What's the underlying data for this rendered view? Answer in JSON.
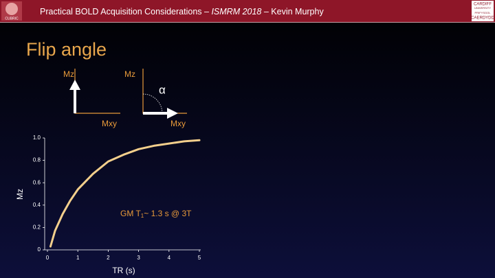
{
  "header": {
    "title_parts": [
      "Practical BOLD Acquisition Considerations – ",
      "ISMRM 2018",
      " – Kevin Murphy"
    ],
    "left_logo": "CUBRIC",
    "right_logo": [
      "CARDIFF",
      "UNIVERSITY",
      "PRIFYSGOL",
      "CAERDYDD"
    ]
  },
  "slide_title": "Flip angle",
  "diagram": {
    "left": {
      "vertical_label": "Mz",
      "horizontal_label": "Mxy"
    },
    "right": {
      "vertical_label": "Mz",
      "horizontal_label": "Mxy",
      "angle_label": "α"
    }
  },
  "chart_data": {
    "type": "line",
    "xlabel": "TR (s)",
    "ylabel": "Mz",
    "annotation": [
      "GM T",
      "1",
      "~ 1.3 s @ 3T"
    ],
    "x": [
      0.1,
      0.25,
      0.5,
      0.75,
      1,
      1.5,
      2,
      2.5,
      3,
      3.5,
      4,
      4.5,
      5
    ],
    "values": [
      0.03,
      0.17,
      0.32,
      0.44,
      0.54,
      0.68,
      0.79,
      0.85,
      0.9,
      0.93,
      0.95,
      0.97,
      0.98
    ],
    "color": "#f3cf8c",
    "xlim": [
      0,
      5
    ],
    "xticks": [
      0,
      1,
      2,
      3,
      4,
      5
    ],
    "ylim": [
      0,
      1
    ],
    "yticks": [
      0,
      0.2,
      0.4,
      0.6,
      0.8,
      {
        "value": 1,
        "label": "1.0"
      }
    ]
  }
}
